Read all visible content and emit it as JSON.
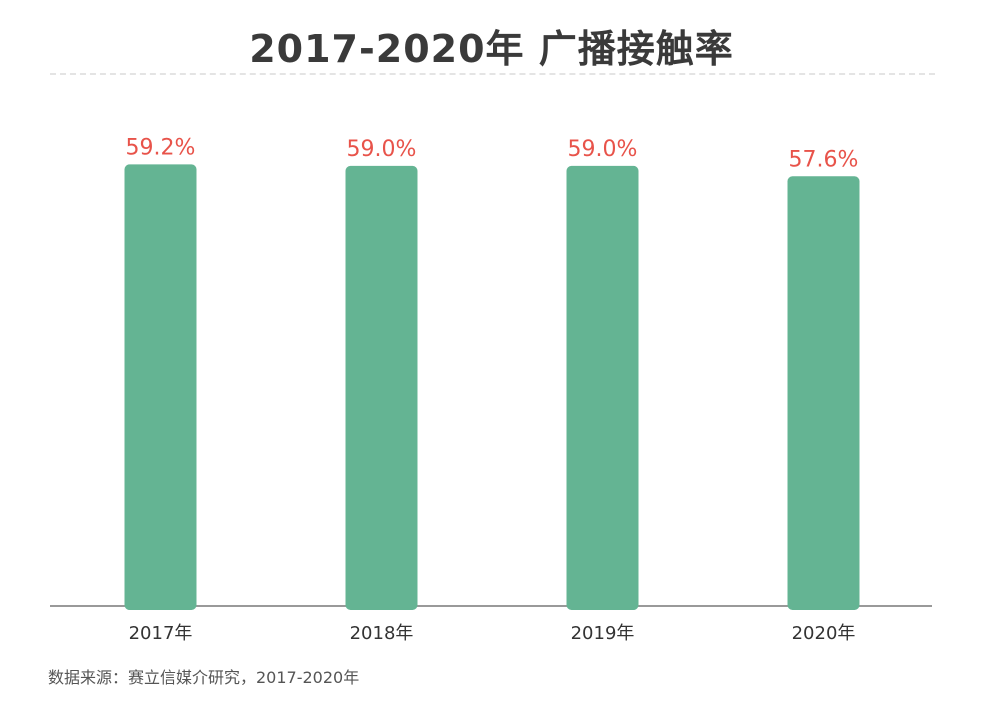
{
  "title": "2017-2020年 广播接触率",
  "source": "数据来源：赛立信媒介研究，2017-2020年",
  "colors": {
    "bar": "#64b493",
    "label": "#e8534a",
    "axis": "#999999",
    "tick": "#333333"
  },
  "chart_data": {
    "type": "bar",
    "title": "2017-2020年 广播接触率",
    "categories": [
      "2017年",
      "2018年",
      "2019年",
      "2020年"
    ],
    "values": [
      59.2,
      59.0,
      59.0,
      57.6
    ],
    "value_labels": [
      "59.2%",
      "59.0%",
      "59.0%",
      "57.6%"
    ],
    "xlabel": "",
    "ylabel": "",
    "grid": false,
    "legend": "none"
  }
}
